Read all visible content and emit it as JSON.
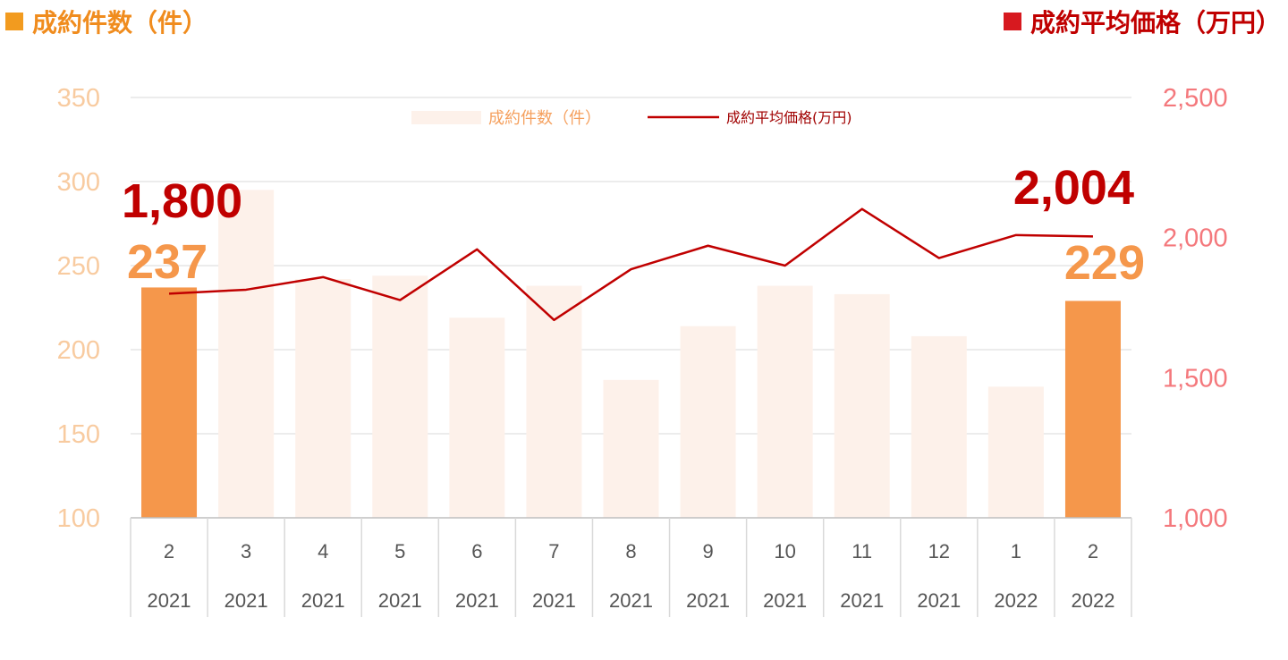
{
  "header": {
    "left_title": "成約件数（件）",
    "right_title": "成約平均価格（万円）",
    "left_color": "#F29B1F",
    "right_color": "#D7191F"
  },
  "chart_data": {
    "type": "bar",
    "categories": [
      "2\n2021",
      "3\n2021",
      "4\n2021",
      "5\n2021",
      "6\n2021",
      "7\n2021",
      "8\n2021",
      "9\n2021",
      "10\n2021",
      "11\n2021",
      "12\n2021",
      "1\n2022",
      "2\n2022"
    ],
    "months": [
      "2",
      "3",
      "4",
      "5",
      "6",
      "7",
      "8",
      "9",
      "10",
      "11",
      "12",
      "1",
      "2"
    ],
    "years": [
      "2021",
      "2021",
      "2021",
      "2021",
      "2021",
      "2021",
      "2021",
      "2021",
      "2021",
      "2021",
      "2021",
      "2022",
      "2022"
    ],
    "series": [
      {
        "name": "成約件数（件）",
        "type": "bar",
        "axis": "left",
        "values": [
          237,
          295,
          242,
          244,
          219,
          238,
          182,
          214,
          238,
          233,
          208,
          178,
          229
        ],
        "highlight_indices": [
          0,
          12
        ],
        "color": "#F5974B",
        "color_faded": "#FDF1EA"
      },
      {
        "name": "成約平均価格(万円)",
        "type": "line",
        "axis": "right",
        "values": [
          1800,
          1814,
          1859,
          1777,
          1958,
          1706,
          1887,
          1971,
          1900,
          2102,
          1927,
          2009,
          2004
        ],
        "color": "#C00000"
      }
    ],
    "y_left": {
      "ylim": [
        100,
        350
      ],
      "ticks": [
        "100",
        "150",
        "200",
        "250",
        "300",
        "350"
      ]
    },
    "y_right": {
      "ylim": [
        1000,
        2500
      ],
      "ticks": [
        "1,000",
        "1,500",
        "2,000",
        "2,500"
      ]
    },
    "annotations": {
      "bar_first": "237",
      "bar_last": "229",
      "line_first": "1,800",
      "line_last": "2,004"
    },
    "legend": {
      "bar_label": "成約件数（件）",
      "line_label": "成約平均価格(万円)",
      "placement": "top-center"
    },
    "grid": true
  }
}
